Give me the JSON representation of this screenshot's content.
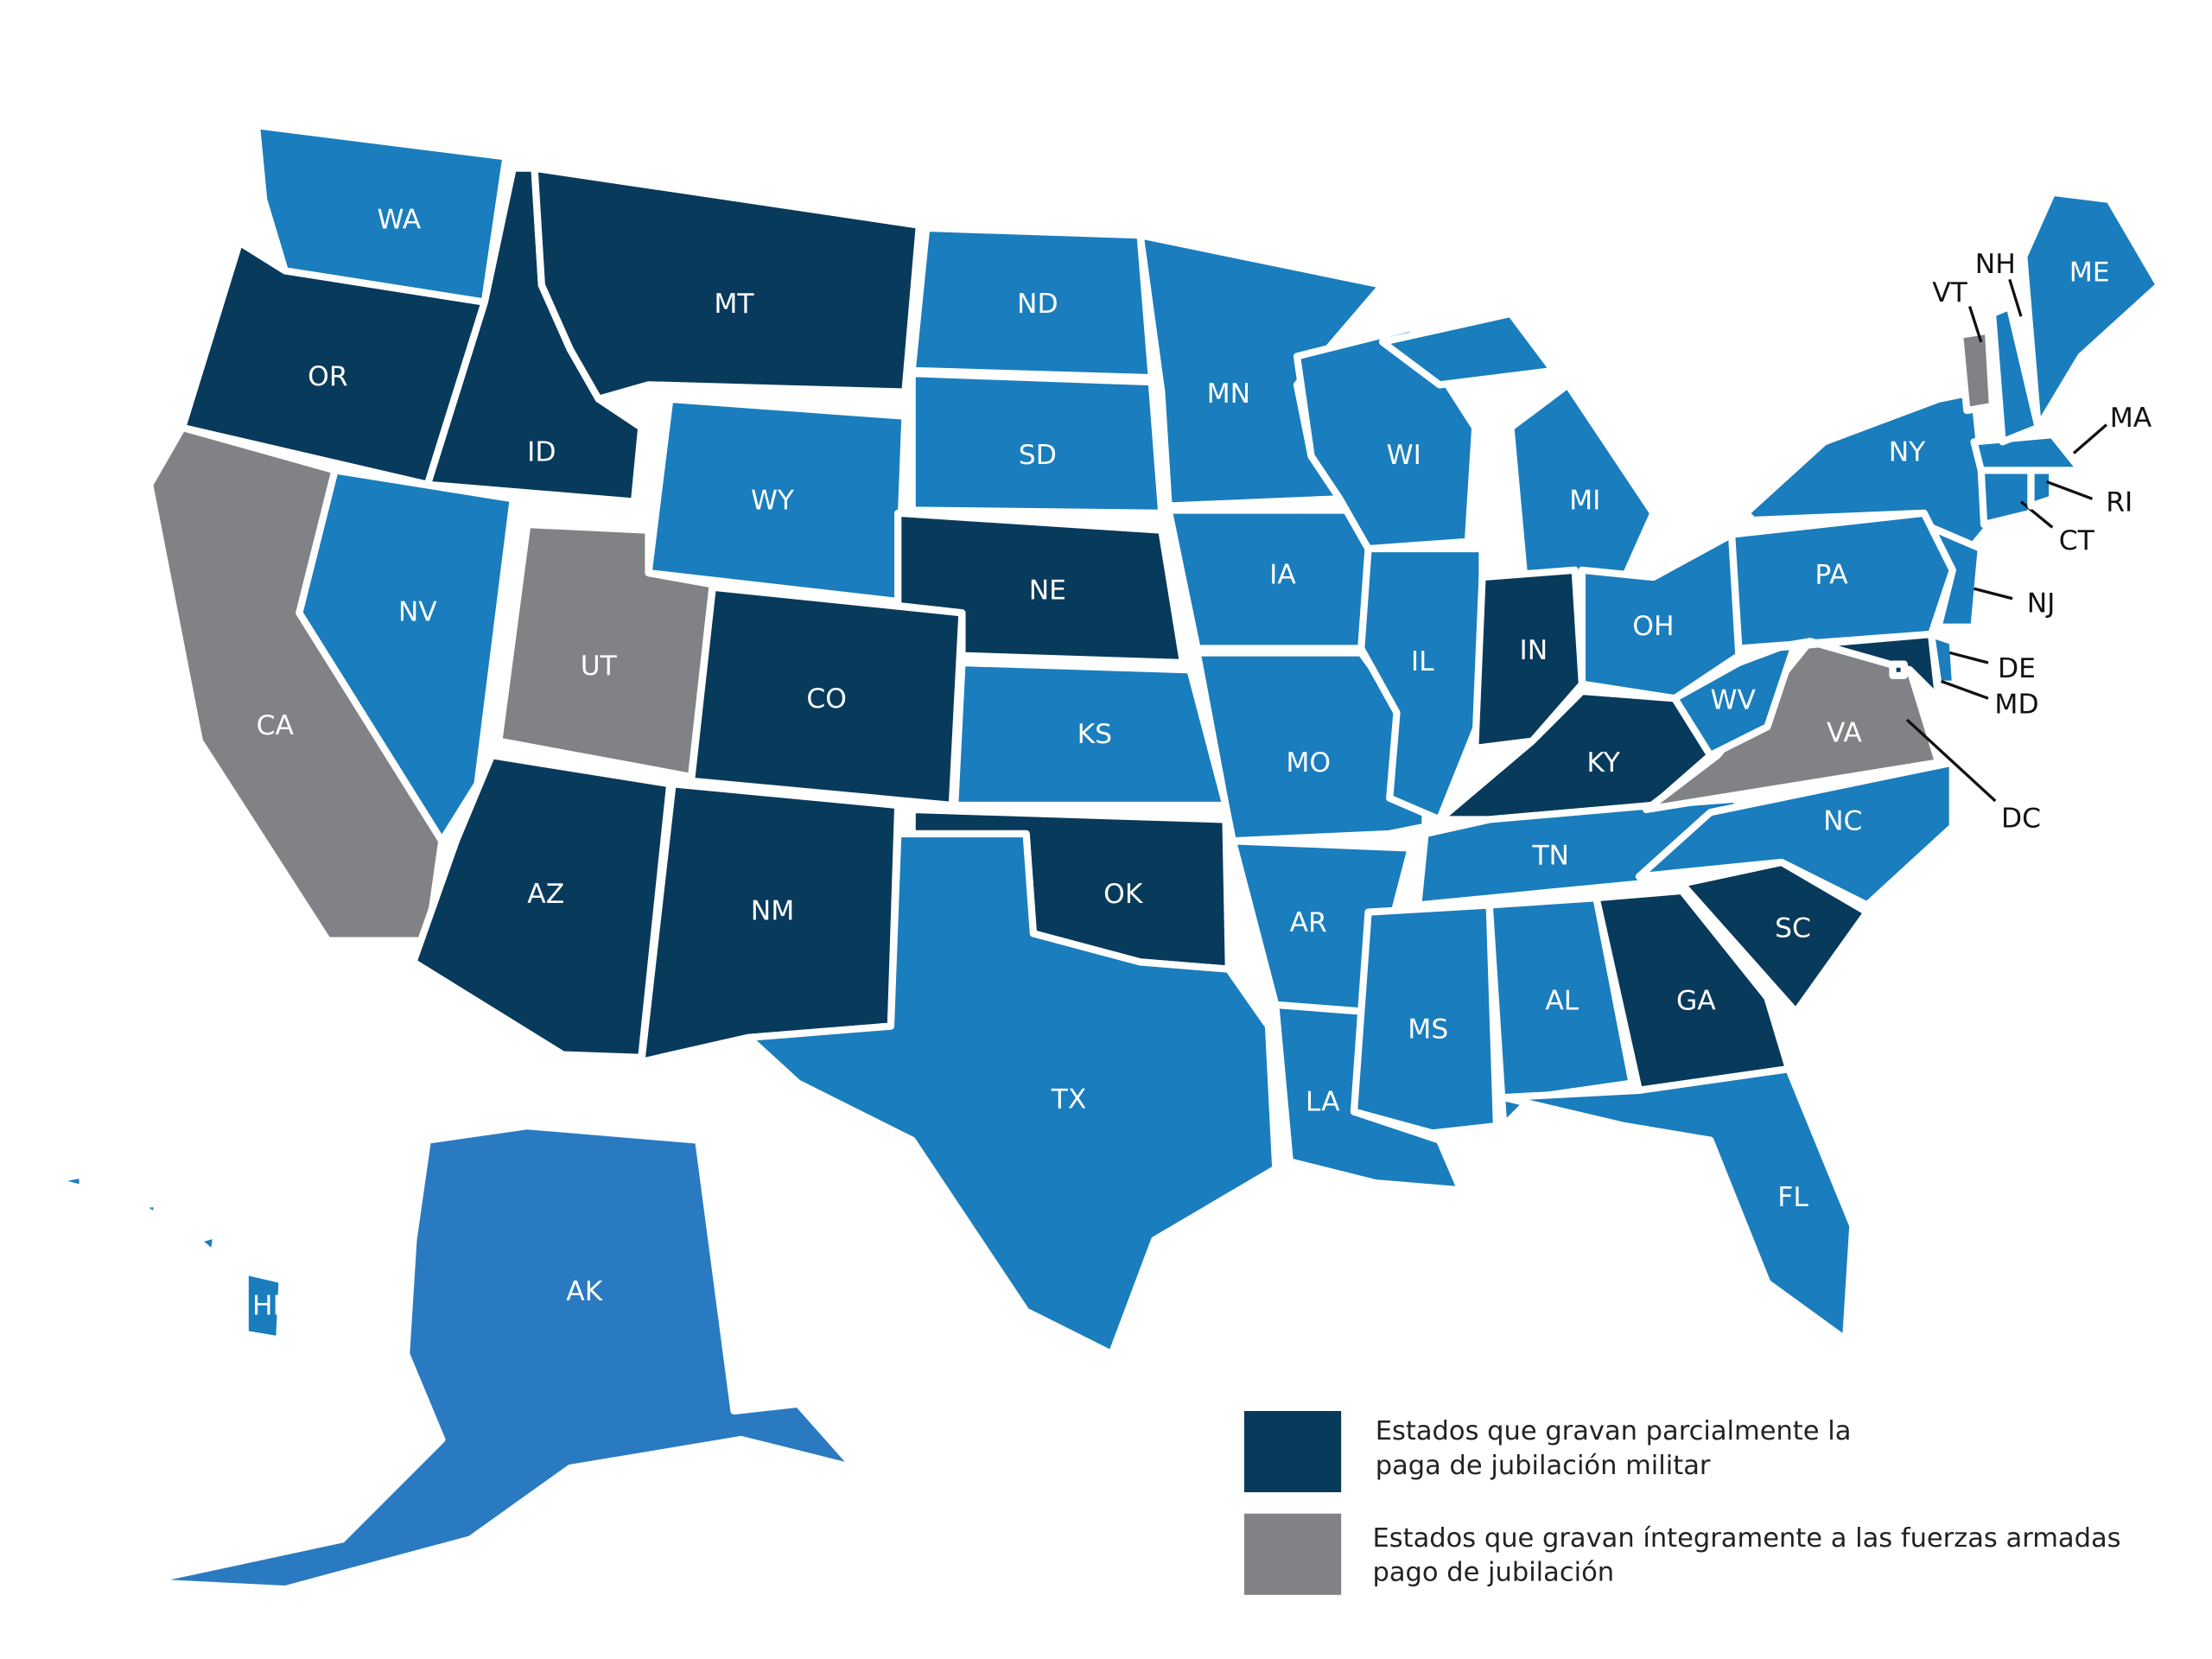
{
  "states": [
    {
      "label": "WA",
      "color": "#1a7dbd"
    },
    {
      "label": "OR",
      "color": "#083a5c"
    },
    {
      "label": "CA",
      "color": "#808285"
    },
    {
      "label": "NV",
      "color": "#1a7dbd"
    },
    {
      "label": "ID",
      "color": "#083a5c"
    },
    {
      "label": "MT",
      "color": "#083a5c"
    },
    {
      "label": "WY",
      "color": "#1a7dbd"
    },
    {
      "label": "UT",
      "color": "#808285"
    },
    {
      "label": "CO",
      "color": "#083a5c"
    },
    {
      "label": "AZ",
      "color": "#083a5c"
    },
    {
      "label": "NM",
      "color": "#083a5c"
    },
    {
      "label": "ND",
      "color": "#1a7dbd"
    },
    {
      "label": "SD",
      "color": "#1a7dbd"
    },
    {
      "label": "NE",
      "color": "#083a5c"
    },
    {
      "label": "KS",
      "color": "#1a7dbd"
    },
    {
      "label": "OK",
      "color": "#083a5c"
    },
    {
      "label": "TX",
      "color": "#1a7dbd"
    },
    {
      "label": "MN",
      "color": "#1a7dbd"
    },
    {
      "label": "IA",
      "color": "#1a7dbd"
    },
    {
      "label": "MO",
      "color": "#1a7dbd"
    },
    {
      "label": "AR",
      "color": "#1a7dbd"
    },
    {
      "label": "LA",
      "color": "#1a7dbd"
    },
    {
      "label": "WI",
      "color": "#1a7dbd"
    },
    {
      "label": "MI",
      "color": "#1a7dbd"
    },
    {
      "label": "IL",
      "color": "#1a7dbd"
    },
    {
      "label": "IN",
      "color": "#083a5c"
    },
    {
      "label": "OH",
      "color": "#1a7dbd"
    },
    {
      "label": "KY",
      "color": "#083a5c"
    },
    {
      "label": "TN",
      "color": "#1a7dbd"
    },
    {
      "label": "MS",
      "color": "#1a7dbd"
    },
    {
      "label": "AL",
      "color": "#1a7dbd"
    },
    {
      "label": "GA",
      "color": "#083a5c"
    },
    {
      "label": "FL",
      "color": "#1a7dbd"
    },
    {
      "label": "SC",
      "color": "#083a5c"
    },
    {
      "label": "NC",
      "color": "#1a7dbd"
    },
    {
      "label": "VA",
      "color": "#808285"
    },
    {
      "label": "WV",
      "color": "#1a7dbd"
    },
    {
      "label": "PA",
      "color": "#1a7dbd"
    },
    {
      "label": "NY",
      "color": "#1a7dbd"
    },
    {
      "label": "NJ",
      "color": "#1a7dbd"
    },
    {
      "label": "DE",
      "color": "#1a7dbd"
    },
    {
      "label": "MD",
      "color": "#083a5c"
    },
    {
      "label": "DC",
      "color": "#083a5c"
    },
    {
      "label": "CT",
      "color": "#1a7dbd"
    },
    {
      "label": "RI",
      "color": "#1a7dbd"
    },
    {
      "label": "MA",
      "color": "#1a7dbd"
    },
    {
      "label": "VT",
      "color": "#808285"
    },
    {
      "label": "NH",
      "color": "#1a7dbd"
    },
    {
      "label": "ME",
      "color": "#1a7dbd"
    },
    {
      "label": "AK",
      "color": "#2a7ac1"
    },
    {
      "label": "HI",
      "color": "#1a7dbd"
    }
  ],
  "legend": [
    {
      "lines": [
        "Estados que gravan parcialmente la",
        "paga de jubilación militar"
      ],
      "color": "#083a5c"
    },
    {
      "lines": [
        "Estados que gravan íntegramente a las fuerzas armadas",
        "pago de jubilación"
      ],
      "color": "#808285"
    }
  ]
}
